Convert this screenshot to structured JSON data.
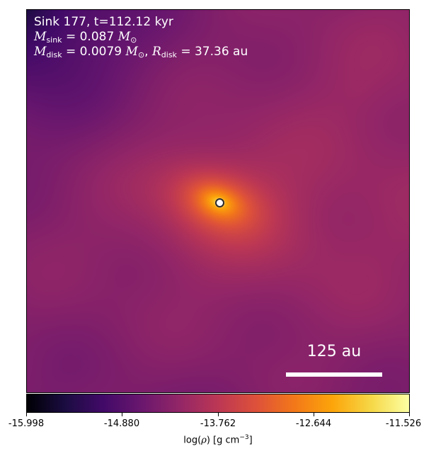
{
  "annotation": {
    "title": "Sink 177, t=112.12 kyr",
    "msink": {
      "symbol": "M",
      "subscript": "sink",
      "value": "= 0.087",
      "unit_symbol": "M",
      "unit_subscript": "⊙"
    },
    "mdisk": {
      "symbol": "M",
      "subscript": "disk",
      "value": "= 0.0079",
      "unit_symbol": "M",
      "unit_subscript": "⊙",
      "separator": ",",
      "r_symbol": "R",
      "r_subscript": "disk",
      "r_value": "= 37.36 au"
    }
  },
  "scale_bar": {
    "label": "125 au"
  },
  "colorbar": {
    "colormap": "inferno",
    "colors": [
      "#000004",
      "#1b0c41",
      "#420a68",
      "#6a176e",
      "#932667",
      "#bc3754",
      "#dd513a",
      "#f37819",
      "#fca50a",
      "#f6d746",
      "#fcffa4"
    ],
    "tick_labels": [
      "-15.998",
      "-14.880",
      "-13.762",
      "-12.644",
      "-11.526"
    ],
    "label_prefix": "log(",
    "label_symbol": "ρ",
    "label_suffix": ") [g cm",
    "label_exponent": "−3",
    "label_close": "]"
  }
}
